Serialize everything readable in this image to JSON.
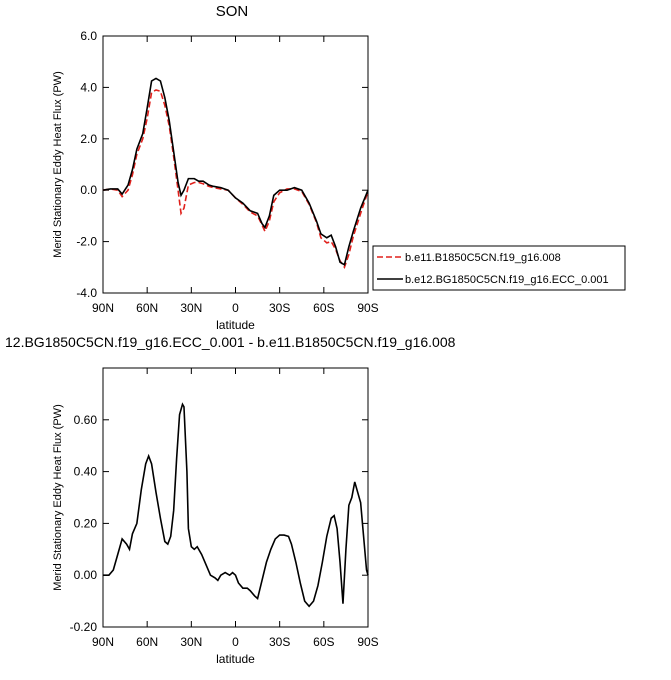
{
  "chart_data": [
    {
      "type": "line",
      "title": "SON",
      "x_label": "latitude",
      "y_label": "Merid Stationary Eddy Heat Flux (PW)",
      "xlim": [
        90,
        -90
      ],
      "xticks": [
        {
          "value": 90,
          "label": "90N"
        },
        {
          "value": 60,
          "label": "60N"
        },
        {
          "value": 30,
          "label": "30N"
        },
        0,
        {
          "value": -30,
          "label": "30S"
        },
        {
          "value": -60,
          "label": "60S"
        },
        {
          "value": -90,
          "label": "90S"
        }
      ],
      "ylim": [
        -4,
        6
      ],
      "yticks": [
        {
          "value": -4,
          "label": "-4.0"
        },
        {
          "value": -2,
          "label": "-2.0"
        },
        {
          "value": 0,
          "label": "0.0"
        },
        {
          "value": 2,
          "label": "2.0"
        },
        {
          "value": 4,
          "label": "4.0"
        },
        {
          "value": 6,
          "label": "6.0"
        }
      ],
      "legend": "outside-right",
      "x": [
        90,
        85,
        80,
        77,
        73,
        70,
        67,
        63,
        60,
        57,
        54,
        51,
        48,
        45,
        42,
        39,
        37,
        35,
        32,
        28,
        25,
        22,
        18,
        15,
        10,
        5,
        0,
        -5,
        -10,
        -15,
        -18,
        -20,
        -23,
        -26,
        -30,
        -35,
        -40,
        -45,
        -50,
        -55,
        -58,
        -62,
        -65,
        -68,
        -71,
        -74,
        -77,
        -80,
        -85,
        -90
      ],
      "series": [
        {
          "name": "b.e11.B1850C5CN.f19_g16.008",
          "color": "#e0201b",
          "dash": "dashed",
          "values": [
            0,
            0.05,
            0.0,
            -0.25,
            0.0,
            0.6,
            1.4,
            2.0,
            2.8,
            3.8,
            3.9,
            3.85,
            3.3,
            2.5,
            1.3,
            0.0,
            -0.9,
            -0.7,
            0.2,
            0.3,
            0.3,
            0.25,
            0.15,
            0.1,
            0.05,
            0.0,
            -0.3,
            -0.55,
            -0.85,
            -1.0,
            -1.35,
            -1.6,
            -1.2,
            -0.45,
            -0.1,
            0.05,
            0.05,
            -0.05,
            -0.55,
            -1.25,
            -1.85,
            -2.05,
            -2.0,
            -2.3,
            -2.75,
            -3.0,
            -2.5,
            -1.8,
            -0.9,
            -0.05
          ]
        },
        {
          "name": "b.e12.BG1850C5CN.f19_g16.ECC_0.001",
          "color": "#000000",
          "dash": "solid",
          "values": [
            0.0,
            0.05,
            0.05,
            -0.15,
            0.2,
            0.8,
            1.6,
            2.2,
            3.2,
            4.25,
            4.35,
            4.25,
            3.6,
            2.7,
            1.5,
            0.3,
            -0.2,
            0.0,
            0.45,
            0.45,
            0.35,
            0.35,
            0.2,
            0.15,
            0.1,
            0.0,
            -0.3,
            -0.5,
            -0.8,
            -0.9,
            -1.3,
            -1.45,
            -1.0,
            -0.2,
            0.0,
            0.0,
            0.1,
            0.0,
            -0.5,
            -1.2,
            -1.7,
            -1.85,
            -1.75,
            -2.2,
            -2.8,
            -2.9,
            -2.2,
            -1.6,
            -0.7,
            0.0
          ]
        }
      ]
    },
    {
      "type": "line",
      "title": "12.BG1850C5CN.f19_g16.ECC_0.001 - b.e11.B1850C5CN.f19_g16.008",
      "x_label": "latitude",
      "y_label": "Merid Stationary Eddy Heat Flux (PW)",
      "xlim": [
        90,
        -90
      ],
      "xticks": [
        {
          "value": 90,
          "label": "90N"
        },
        {
          "value": 60,
          "label": "60N"
        },
        {
          "value": 30,
          "label": "30N"
        },
        0,
        {
          "value": -30,
          "label": "30S"
        },
        {
          "value": -60,
          "label": "60S"
        },
        {
          "value": -90,
          "label": "90S"
        }
      ],
      "ylim": [
        -0.2,
        0.8
      ],
      "yticks": [
        {
          "value": -0.2,
          "label": "-0.20"
        },
        {
          "value": 0,
          "label": "0.00"
        },
        {
          "value": 0.2,
          "label": "0.20"
        },
        {
          "value": 0.4,
          "label": "0.40"
        },
        {
          "value": 0.6,
          "label": "0.60"
        }
      ],
      "x": [
        90,
        86,
        83,
        80,
        77,
        74,
        72,
        70,
        67,
        64,
        61,
        59,
        57,
        54,
        51,
        48,
        46,
        44,
        42,
        40,
        38,
        36,
        35,
        33,
        32,
        30,
        28,
        26,
        23,
        20,
        17,
        14,
        12,
        10,
        7,
        4,
        2,
        0,
        -2,
        -5,
        -8,
        -10,
        -13,
        -15,
        -18,
        -21,
        -24,
        -27,
        -30,
        -33,
        -36,
        -38,
        -41,
        -44,
        -47,
        -50,
        -53,
        -56,
        -59,
        -62,
        -65,
        -67,
        -69,
        -71,
        -73,
        -75,
        -77,
        -79,
        -81,
        -83,
        -85,
        -87,
        -89,
        -90
      ],
      "series": [
        {
          "color": "#000000",
          "dash": "solid",
          "values": [
            0.0,
            0.0,
            0.02,
            0.08,
            0.14,
            0.12,
            0.1,
            0.16,
            0.2,
            0.33,
            0.43,
            0.46,
            0.43,
            0.32,
            0.22,
            0.13,
            0.12,
            0.15,
            0.25,
            0.45,
            0.62,
            0.66,
            0.65,
            0.4,
            0.18,
            0.11,
            0.1,
            0.11,
            0.08,
            0.04,
            0.0,
            -0.01,
            -0.02,
            0.0,
            0.01,
            0.0,
            0.01,
            0.0,
            -0.03,
            -0.05,
            -0.05,
            -0.06,
            -0.08,
            -0.09,
            -0.02,
            0.05,
            0.1,
            0.14,
            0.155,
            0.155,
            0.15,
            0.12,
            0.05,
            -0.03,
            -0.1,
            -0.12,
            -0.1,
            -0.04,
            0.05,
            0.15,
            0.22,
            0.23,
            0.18,
            0.05,
            -0.11,
            0.1,
            0.27,
            0.3,
            0.36,
            0.32,
            0.28,
            0.15,
            0.02,
            0.0
          ]
        }
      ]
    }
  ]
}
